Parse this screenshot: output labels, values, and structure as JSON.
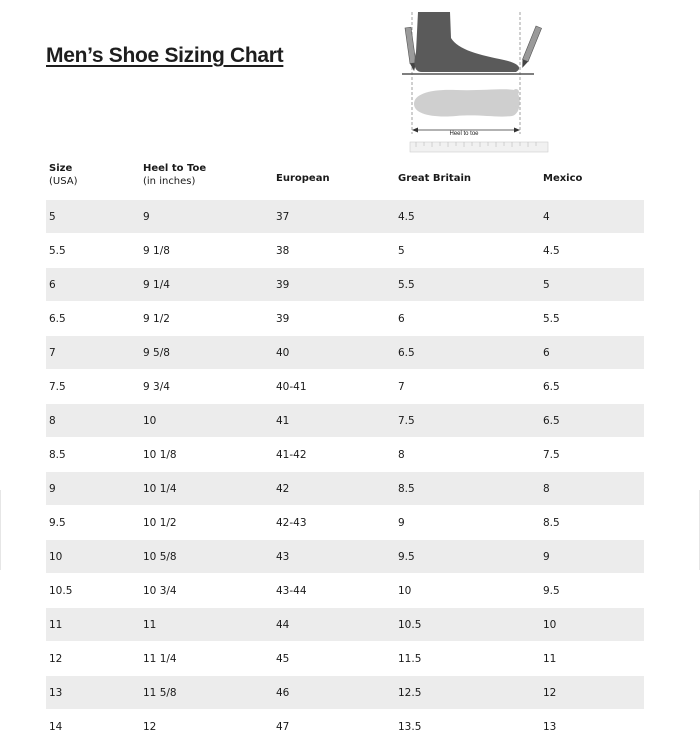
{
  "title": "Men’s Shoe Sizing Chart",
  "illustration": {
    "measure_label": "Heel to toe"
  },
  "table": {
    "headers": [
      {
        "label": "Size",
        "sub": "(USA)"
      },
      {
        "label": "Heel to Toe",
        "sub": "(in inches)"
      },
      {
        "label": "European",
        "sub": ""
      },
      {
        "label": "Great Britain",
        "sub": ""
      },
      {
        "label": "Mexico",
        "sub": ""
      }
    ],
    "rows": [
      [
        "5",
        "9",
        "37",
        "4.5",
        "4"
      ],
      [
        "5.5",
        "9 1/8",
        "38",
        "5",
        "4.5"
      ],
      [
        "6",
        "9 1/4",
        "39",
        "5.5",
        "5"
      ],
      [
        "6.5",
        "9 1/2",
        "39",
        "6",
        "5.5"
      ],
      [
        "7",
        "9 5/8",
        "40",
        "6.5",
        "6"
      ],
      [
        "7.5",
        "9 3/4",
        "40-41",
        "7",
        "6.5"
      ],
      [
        "8",
        "10",
        "41",
        "7.5",
        "6.5"
      ],
      [
        "8.5",
        "10 1/8",
        "41-42",
        "8",
        "7.5"
      ],
      [
        "9",
        "10 1/4",
        "42",
        "8.5",
        "8"
      ],
      [
        "9.5",
        "10 1/2",
        "42-43",
        "9",
        "8.5"
      ],
      [
        "10",
        "10 5/8",
        "43",
        "9.5",
        "9"
      ],
      [
        "10.5",
        "10 3/4",
        "43-44",
        "10",
        "9.5"
      ],
      [
        "11",
        "11",
        "44",
        "10.5",
        "10"
      ],
      [
        "12",
        "11 1/4",
        "45",
        "11.5",
        "11"
      ],
      [
        "13",
        "11 5/8",
        "46",
        "12.5",
        "12"
      ],
      [
        "14",
        "12",
        "47",
        "13.5",
        "13"
      ]
    ]
  }
}
